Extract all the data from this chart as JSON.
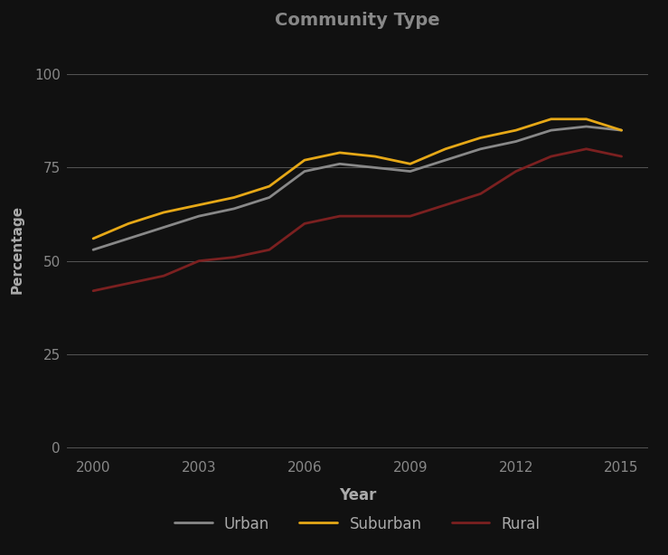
{
  "title": "Community Type",
  "xlabel": "Year",
  "ylabel": "Percentage",
  "background_color": "#111111",
  "plot_bg_color": "#111111",
  "grid_color": "#555555",
  "text_color": "#aaaaaa",
  "title_color": "#888888",
  "tick_color": "#888888",
  "label_color": "#aaaaaa",
  "years": [
    2000,
    2001,
    2002,
    2003,
    2004,
    2005,
    2006,
    2007,
    2008,
    2009,
    2010,
    2011,
    2012,
    2013,
    2014,
    2015
  ],
  "urban": [
    53,
    56,
    59,
    62,
    64,
    67,
    74,
    76,
    75,
    74,
    77,
    80,
    82,
    85,
    86,
    85
  ],
  "suburban": [
    56,
    60,
    63,
    65,
    67,
    70,
    77,
    79,
    78,
    76,
    80,
    83,
    85,
    88,
    88,
    85
  ],
  "rural": [
    42,
    44,
    46,
    50,
    51,
    53,
    60,
    62,
    62,
    62,
    65,
    68,
    74,
    78,
    80,
    78
  ],
  "urban_color": "#888888",
  "suburban_color": "#e6a817",
  "rural_color": "#7b2020",
  "line_width": 2.0,
  "ylim": [
    -2,
    108
  ],
  "yticks": [
    0,
    25,
    50,
    75,
    100
  ],
  "xticks": [
    2000,
    2003,
    2006,
    2009,
    2012,
    2015
  ],
  "legend_labels": [
    "Urban",
    "Suburban",
    "Rural"
  ]
}
